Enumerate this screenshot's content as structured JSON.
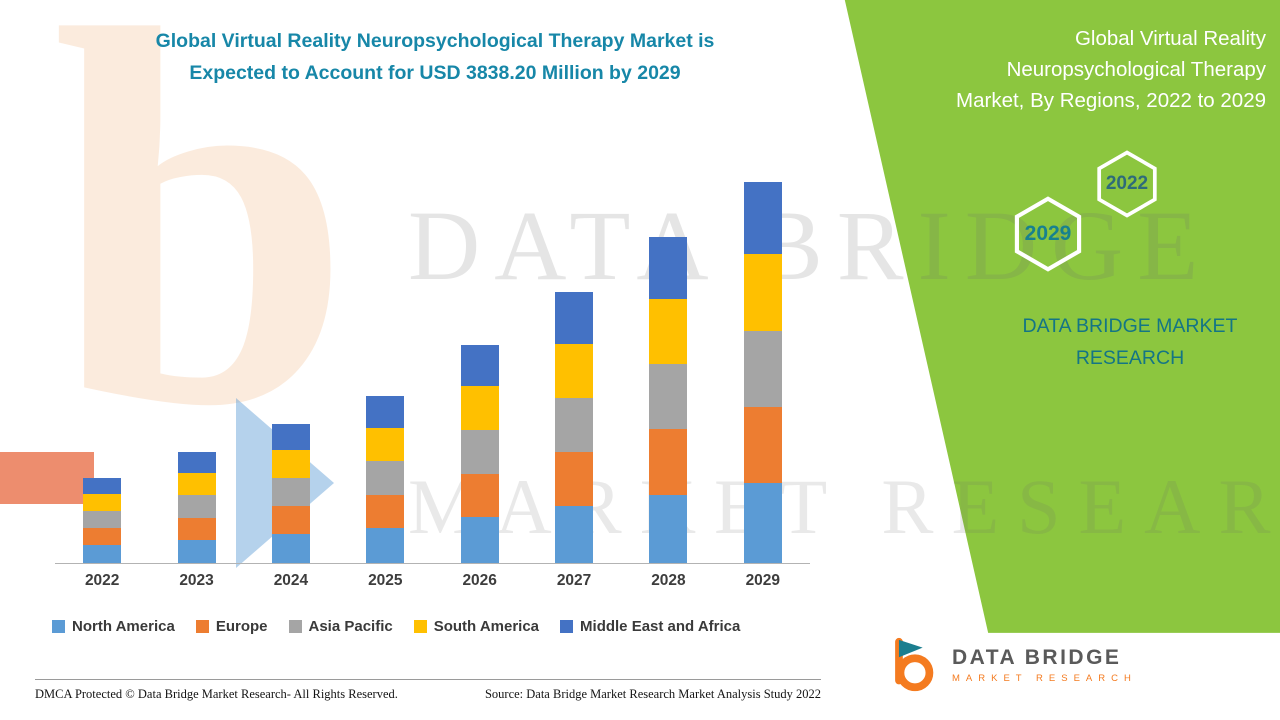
{
  "title": {
    "line1": "Global Virtual Reality Neuropsychological Therapy Market is",
    "line2": "Expected to Account for USD 3838.20 Million by 2029"
  },
  "side_panel": {
    "heading_line1": "Global Virtual Reality",
    "heading_line2": "Neuropsychological Therapy",
    "heading_line3": "Market, By Regions, 2022 to 2029",
    "hex_year_top": "2022",
    "hex_year_bottom": "2029",
    "brand_line1": "DATA BRIDGE MARKET",
    "brand_line2": "RESEARCH"
  },
  "watermark": {
    "glyph": "b",
    "line1": "DATA BRIDGE",
    "line2": "MARKET RESEARCH"
  },
  "footer": {
    "dmca": "DMCA Protected © Data Bridge Market Research- All Rights Reserved.",
    "source": "Source: Data Bridge Market Research Market Analysis Study 2022"
  },
  "logo": {
    "name": "DATA BRIDGE",
    "tagline": "MARKET RESEARCH"
  },
  "colors": {
    "band_green": "#8CC63F",
    "title_teal": "#1787A8",
    "brand_teal": "#147585",
    "logo_orange": "#F47B20",
    "logo_teal": "#1B7E8F"
  },
  "chart_data": {
    "type": "bar",
    "stacked": true,
    "title": "Global Virtual Reality Neuropsychological Therapy Market, By Regions, 2022 to 2029 (USD Million)",
    "categories": [
      "2022",
      "2023",
      "2024",
      "2025",
      "2026",
      "2027",
      "2028",
      "2029"
    ],
    "series": [
      {
        "name": "North America",
        "color": "#5B9BD5",
        "values": [
          180,
          235,
          294,
          353,
          461,
          573,
          690,
          806
        ]
      },
      {
        "name": "Europe",
        "color": "#ED7D31",
        "values": [
          170,
          224,
          280,
          336,
          439,
          546,
          657,
          768
        ]
      },
      {
        "name": "Asia Pacific",
        "color": "#A5A5A5",
        "values": [
          170,
          224,
          280,
          336,
          439,
          546,
          657,
          768
        ]
      },
      {
        "name": "South America",
        "color": "#FFC000",
        "values": [
          170,
          224,
          280,
          336,
          439,
          546,
          657,
          768
        ]
      },
      {
        "name": "Middle East and Africa",
        "color": "#4472C4",
        "values": [
          166,
          211,
          266,
          321,
          418,
          519,
          622,
          728.2
        ]
      }
    ],
    "estimated_totals": [
      856,
      1118,
      1400,
      1682,
      2196,
      2730,
      3283,
      3838.2
    ],
    "ylim": [
      0,
      3838.2
    ],
    "legend_position": "bottom",
    "grid": false,
    "xlabel": "",
    "ylabel": ""
  }
}
